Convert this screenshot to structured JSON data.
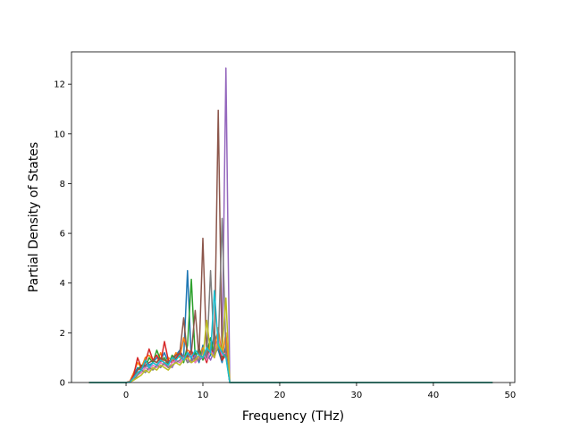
{
  "chart_data": {
    "type": "line",
    "x_label": "Frequency (THz)",
    "y_label": "Partial Density of States",
    "x": [
      -4.8,
      0,
      0.5,
      1,
      1.5,
      2,
      2.5,
      3,
      3.5,
      4,
      4.5,
      5,
      5.5,
      6,
      6.5,
      7,
      7.5,
      8,
      8.5,
      9,
      9.5,
      10,
      10.5,
      11,
      11.5,
      12,
      12.5,
      13,
      13.5,
      14,
      47.7
    ],
    "xlim": [
      -7.1,
      50.6
    ],
    "ylim": [
      0,
      13.3
    ],
    "xticks": [
      0,
      10,
      20,
      30,
      40,
      50
    ],
    "yticks": [
      0,
      2,
      4,
      6,
      8,
      10,
      12
    ],
    "series": [
      {
        "color": "#1f77b4",
        "values": [
          0,
          0,
          0.05,
          0.3,
          0.6,
          0.5,
          0.9,
          0.7,
          0.8,
          1.0,
          0.9,
          1.2,
          0.8,
          0.9,
          1.1,
          1.3,
          1.0,
          4.5,
          0.9,
          1.2,
          0.8,
          1.5,
          0.9,
          1.1,
          2.0,
          1.3,
          0.8,
          1.5,
          0,
          0,
          0
        ]
      },
      {
        "color": "#ff7f0e",
        "values": [
          0,
          0,
          0.05,
          0.4,
          0.8,
          0.6,
          1.0,
          1.1,
          0.9,
          0.8,
          1.2,
          0.7,
          1.0,
          0.9,
          1.2,
          1.0,
          1.8,
          1.3,
          1.2,
          0.8,
          1.0,
          1.4,
          1.1,
          1.6,
          1.3,
          2.2,
          1.0,
          2.0,
          0,
          0,
          0
        ]
      },
      {
        "color": "#2ca02c",
        "values": [
          0,
          0,
          0.02,
          0.2,
          0.5,
          0.7,
          0.6,
          1.0,
          0.8,
          1.3,
          0.9,
          1.0,
          0.7,
          1.1,
          0.9,
          1.2,
          0.8,
          1.5,
          4.15,
          1.0,
          1.4,
          0.9,
          1.2,
          1.8,
          1.1,
          1.5,
          0.9,
          1.2,
          0,
          0,
          0
        ]
      },
      {
        "color": "#d62728",
        "values": [
          0,
          0,
          0.03,
          0.3,
          1.0,
          0.6,
          0.8,
          1.35,
          0.9,
          1.1,
          0.8,
          1.65,
          0.9,
          0.8,
          1.0,
          1.2,
          0.9,
          1.1,
          1.3,
          0.9,
          1.0,
          1.2,
          0.8,
          1.4,
          1.0,
          1.6,
          0.9,
          1.1,
          0,
          0,
          0
        ]
      },
      {
        "color": "#9467bd",
        "values": [
          0,
          0,
          0.02,
          0.2,
          0.4,
          0.5,
          0.7,
          0.6,
          0.8,
          0.7,
          0.9,
          0.8,
          0.7,
          0.6,
          0.9,
          0.8,
          1.0,
          0.9,
          0.8,
          1.1,
          0.9,
          1.0,
          1.2,
          0.9,
          1.3,
          1.5,
          1.1,
          12.65,
          0,
          0,
          0
        ]
      },
      {
        "color": "#8c564b",
        "values": [
          0,
          0,
          0.02,
          0.2,
          0.5,
          0.6,
          0.7,
          0.8,
          0.9,
          0.8,
          1.0,
          0.9,
          0.8,
          1.0,
          1.1,
          1.2,
          2.6,
          1.0,
          1.2,
          2.9,
          1.0,
          5.8,
          1.1,
          1.4,
          1.2,
          10.95,
          1.0,
          1.3,
          0,
          0,
          0
        ]
      },
      {
        "color": "#e377c2",
        "values": [
          0,
          0,
          0.02,
          0.1,
          0.3,
          0.4,
          0.6,
          0.5,
          0.7,
          0.6,
          0.8,
          0.7,
          0.6,
          0.8,
          0.9,
          0.8,
          1.0,
          0.9,
          1.1,
          0.8,
          1.0,
          1.2,
          0.9,
          1.3,
          1.0,
          1.8,
          1.1,
          1.2,
          0,
          0,
          0
        ]
      },
      {
        "color": "#7f7f7f",
        "values": [
          0,
          0,
          0.02,
          0.1,
          0.3,
          0.5,
          0.4,
          0.6,
          0.5,
          0.7,
          0.6,
          0.8,
          0.6,
          0.7,
          0.8,
          0.9,
          1.1,
          0.8,
          0.9,
          1.0,
          0.9,
          1.3,
          1.0,
          4.5,
          1.1,
          1.4,
          6.6,
          1.2,
          0,
          0,
          0
        ]
      },
      {
        "color": "#bcbd22",
        "values": [
          0,
          0,
          0.02,
          0.1,
          0.2,
          0.3,
          0.5,
          0.4,
          0.6,
          0.5,
          0.7,
          0.6,
          0.5,
          0.7,
          0.8,
          0.7,
          0.9,
          1.0,
          0.8,
          0.9,
          1.1,
          1.0,
          2.5,
          1.2,
          1.0,
          1.6,
          1.3,
          3.4,
          0,
          0,
          0
        ]
      },
      {
        "color": "#17becf",
        "values": [
          0,
          0,
          0.02,
          0.2,
          0.4,
          0.5,
          0.9,
          0.6,
          0.8,
          0.7,
          0.9,
          0.8,
          0.7,
          1.0,
          0.9,
          1.1,
          0.9,
          1.2,
          1.0,
          1.3,
          1.1,
          1.0,
          1.4,
          1.2,
          3.7,
          1.5,
          1.2,
          1.0,
          0,
          0,
          0
        ]
      }
    ]
  }
}
